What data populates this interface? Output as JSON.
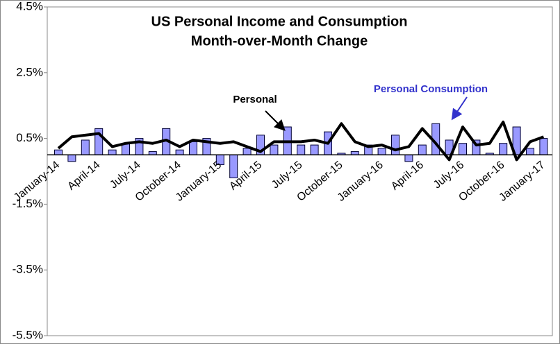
{
  "chart_data": {
    "type": "bar_line",
    "title": [
      "US Personal Income and Consumption",
      "Month-over-Month Change"
    ],
    "categories": [
      "January-14",
      null,
      null,
      "April-14",
      null,
      null,
      "July-14",
      null,
      null,
      "October-14",
      null,
      null,
      "January-15",
      null,
      null,
      "April-15",
      null,
      null,
      "July-15",
      null,
      null,
      "October-15",
      null,
      null,
      "January-16",
      null,
      null,
      "April-16",
      null,
      null,
      "July-16",
      null,
      null,
      "October-16",
      null,
      null,
      "January-17"
    ],
    "series": [
      {
        "name": "Personal Consumption",
        "type": "bar",
        "color": "#9999ff",
        "values": [
          0.15,
          -0.2,
          0.45,
          0.8,
          0.15,
          0.35,
          0.5,
          0.1,
          0.8,
          0.15,
          0.4,
          0.5,
          -0.3,
          -0.7,
          0.2,
          0.6,
          0.3,
          0.85,
          0.3,
          0.3,
          0.7,
          0.05,
          0.1,
          0.3,
          0.2,
          0.6,
          -0.2,
          0.3,
          0.95,
          0.45,
          0.35,
          0.45,
          0.05,
          0.35,
          0.85,
          0.2,
          0.5
        ]
      },
      {
        "name": "Personal",
        "type": "line",
        "color": "#000000",
        "values": [
          0.2,
          0.55,
          0.6,
          0.65,
          0.25,
          0.35,
          0.4,
          0.35,
          0.45,
          0.25,
          0.45,
          0.4,
          0.35,
          0.4,
          0.25,
          0.1,
          0.4,
          0.4,
          0.4,
          0.45,
          0.35,
          0.95,
          0.4,
          0.25,
          0.3,
          0.15,
          0.25,
          0.8,
          0.35,
          -0.15,
          0.85,
          0.3,
          0.35,
          1.0,
          -0.15,
          0.4,
          0.55
        ]
      }
    ],
    "annotation_color": "#3333cc",
    "ylim": [
      -5.5,
      4.5
    ],
    "yticks": [
      {
        "value": 4.5,
        "label": "4.5%"
      },
      {
        "value": 2.5,
        "label": "2.5%"
      },
      {
        "value": 0.5,
        "label": "0.5%"
      },
      {
        "value": -1.5,
        "label": "-1.5%"
      },
      {
        "value": -3.5,
        "label": "-3.5%"
      },
      {
        "value": -5.5,
        "label": "-5.5%"
      }
    ],
    "grid": false
  }
}
